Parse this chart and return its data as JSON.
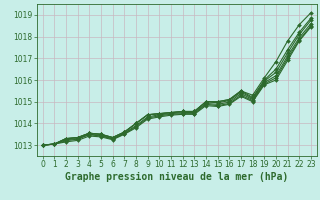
{
  "background_color": "#c8eee8",
  "grid_color": "#c0ddd8",
  "line_color": "#2d6a2d",
  "title": "Graphe pression niveau de la mer (hPa)",
  "xlim": [
    -0.5,
    23.5
  ],
  "ylim": [
    1012.5,
    1019.5
  ],
  "yticks": [
    1013,
    1014,
    1015,
    1016,
    1017,
    1018,
    1019
  ],
  "xticks": [
    0,
    1,
    2,
    3,
    4,
    5,
    6,
    7,
    8,
    9,
    10,
    11,
    12,
    13,
    14,
    15,
    16,
    17,
    18,
    19,
    20,
    21,
    22,
    23
  ],
  "series": [
    [
      1013.0,
      1013.05,
      1013.3,
      1013.35,
      1013.55,
      1013.5,
      1013.35,
      1013.6,
      1014.0,
      1014.4,
      1014.45,
      1014.5,
      1014.55,
      1014.55,
      1015.0,
      1015.0,
      1015.1,
      1015.5,
      1015.2,
      1016.0,
      1016.5,
      1017.4,
      1018.2,
      1018.85
    ],
    [
      1013.0,
      1013.05,
      1013.3,
      1013.35,
      1013.55,
      1013.5,
      1013.35,
      1013.6,
      1014.0,
      1014.4,
      1014.45,
      1014.5,
      1014.55,
      1014.55,
      1015.0,
      1014.95,
      1015.05,
      1015.45,
      1015.15,
      1015.95,
      1016.35,
      1017.25,
      1018.1,
      1018.75
    ],
    [
      1013.0,
      1013.05,
      1013.25,
      1013.3,
      1013.5,
      1013.45,
      1013.3,
      1013.55,
      1013.9,
      1014.3,
      1014.4,
      1014.45,
      1014.5,
      1014.5,
      1014.92,
      1014.88,
      1014.98,
      1015.38,
      1015.1,
      1015.88,
      1016.2,
      1017.1,
      1017.95,
      1018.6
    ],
    [
      1013.0,
      1013.05,
      1013.2,
      1013.28,
      1013.48,
      1013.42,
      1013.28,
      1013.52,
      1013.85,
      1014.25,
      1014.35,
      1014.42,
      1014.45,
      1014.45,
      1014.88,
      1014.82,
      1014.92,
      1015.3,
      1015.05,
      1015.82,
      1016.1,
      1017.0,
      1017.85,
      1018.5
    ],
    [
      1013.0,
      1013.05,
      1013.15,
      1013.22,
      1013.42,
      1013.38,
      1013.25,
      1013.5,
      1013.8,
      1014.2,
      1014.3,
      1014.38,
      1014.42,
      1014.42,
      1014.82,
      1014.78,
      1014.88,
      1015.25,
      1015.0,
      1015.78,
      1016.0,
      1016.9,
      1017.8,
      1018.45
    ],
    [
      1013.0,
      1013.05,
      1013.3,
      1013.35,
      1013.55,
      1013.5,
      1013.35,
      1013.6,
      1014.0,
      1014.4,
      1014.45,
      1014.5,
      1014.55,
      1014.55,
      1015.0,
      1015.0,
      1015.1,
      1015.5,
      1015.3,
      1016.1,
      1016.85,
      1017.8,
      1018.55,
      1019.1
    ]
  ],
  "marker": "D",
  "markersize": 2.0,
  "linewidth": 0.8,
  "title_fontsize": 7.0,
  "tick_fontsize": 5.5
}
